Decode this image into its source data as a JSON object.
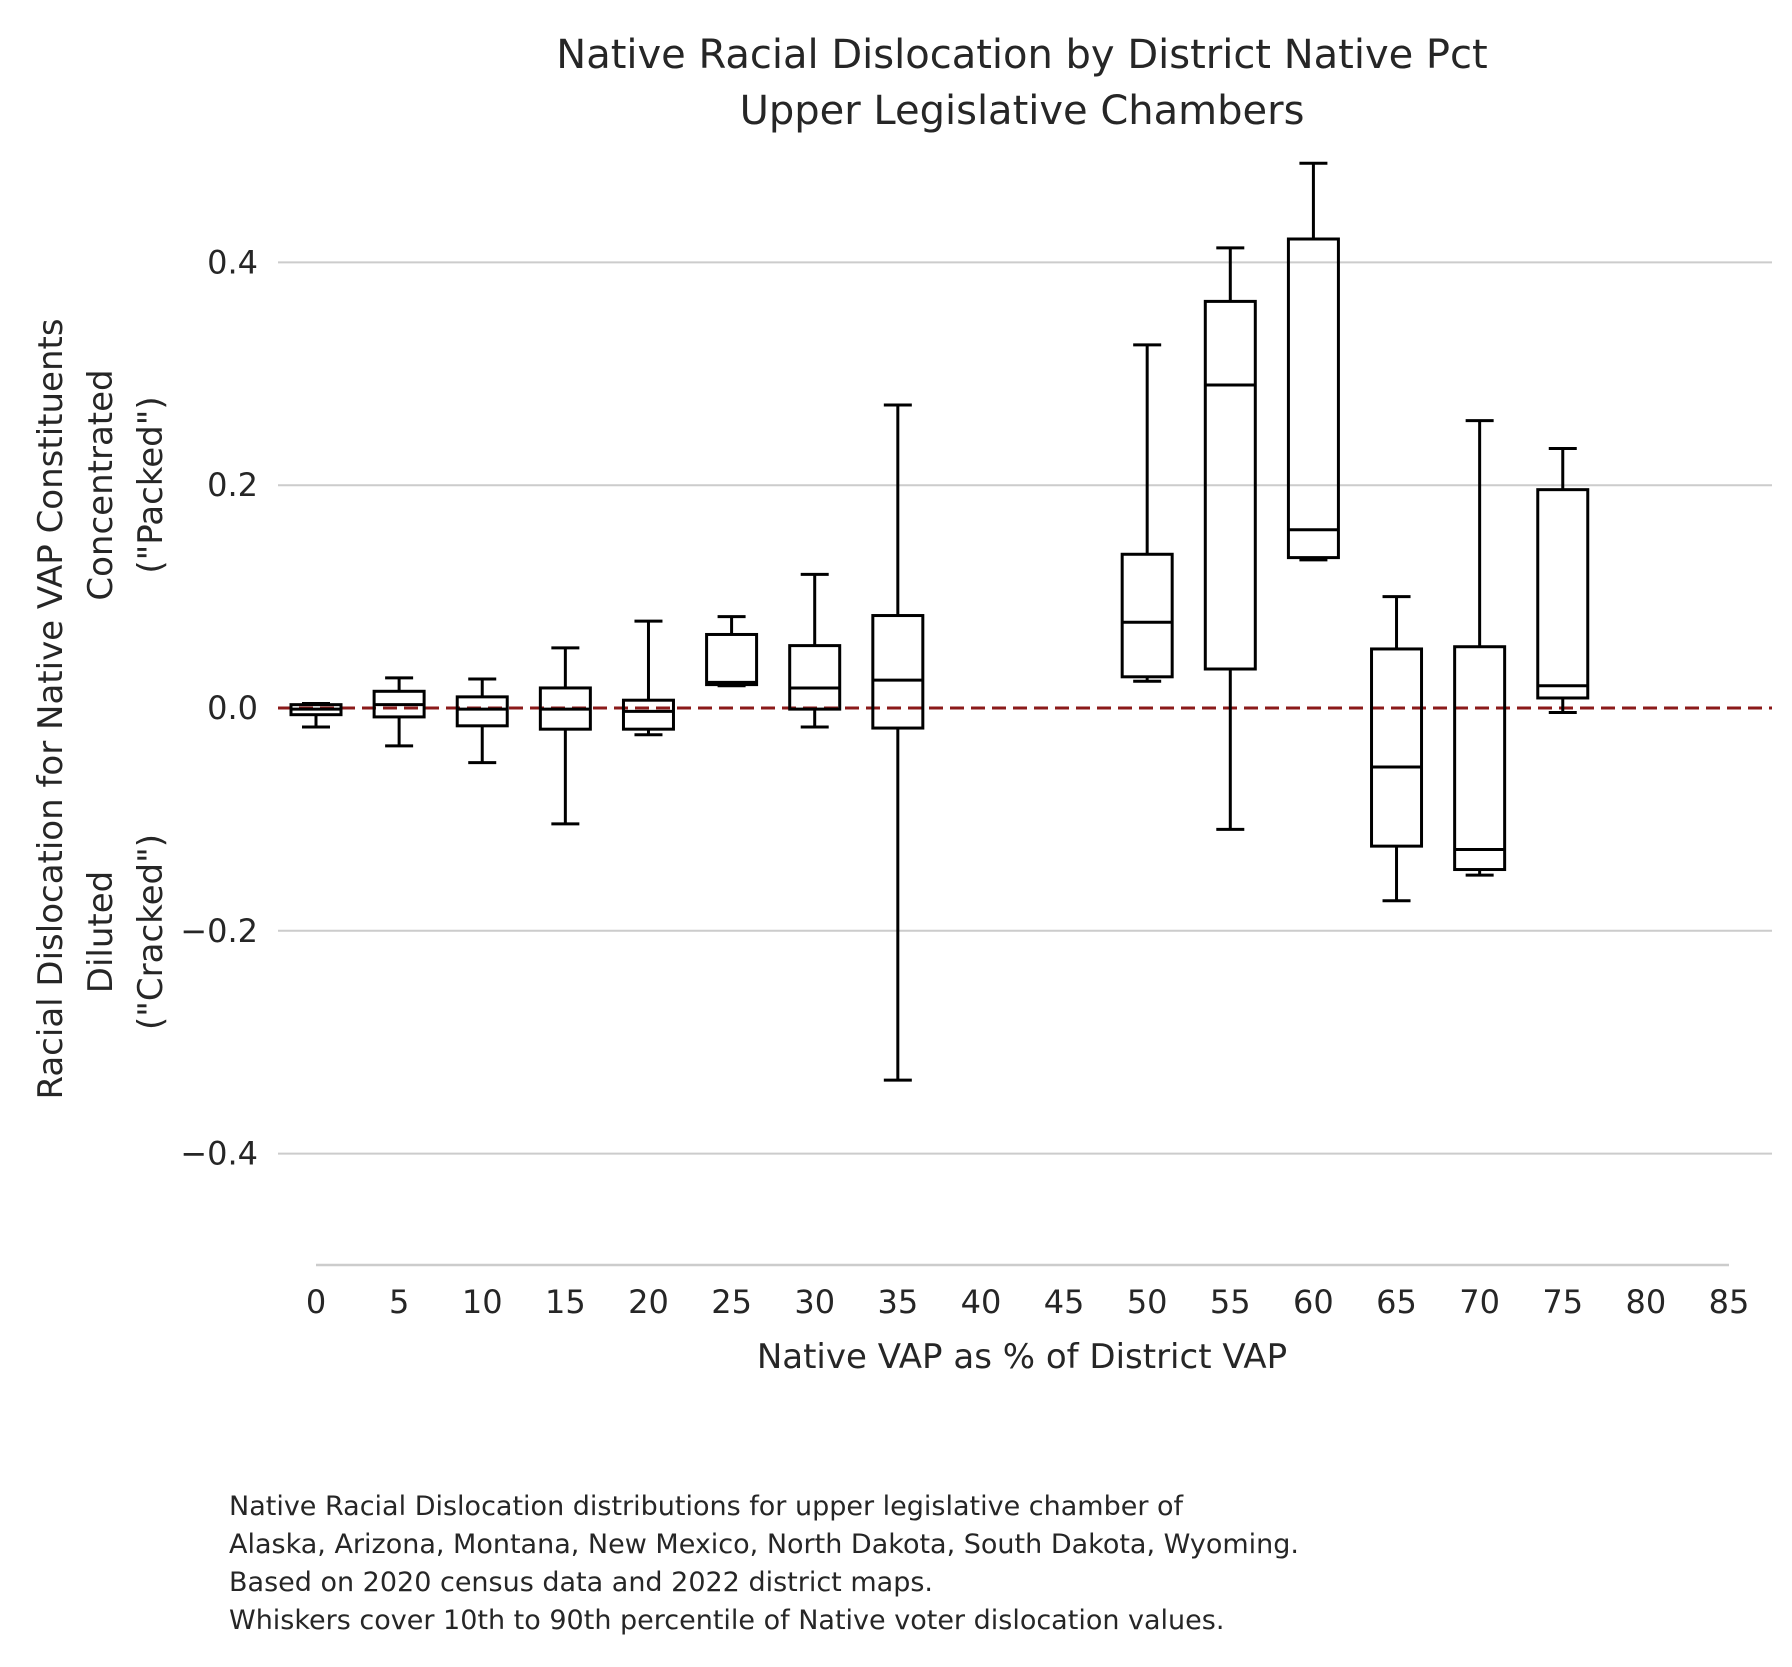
{
  "chart_data": {
    "type": "box",
    "title": [
      "Native Racial Dislocation by District Native Pct",
      "Upper Legislative Chambers"
    ],
    "xlabel": "Native VAP as % of District VAP",
    "ylabel": [
      "Racial Dislocation for Native VAP Constituents",
      "Concentrated",
      "(\"Packed\")",
      "Diluted",
      "(\"Cracked\")"
    ],
    "xlim": [
      0,
      85
    ],
    "ylim": [
      -0.5,
      0.5
    ],
    "x_ticks": [
      0,
      5,
      10,
      15,
      20,
      25,
      30,
      35,
      40,
      45,
      50,
      55,
      60,
      65,
      70,
      75,
      80,
      85
    ],
    "y_ticks": [
      -0.4,
      -0.2,
      0.0,
      0.2,
      0.4
    ],
    "y_tick_labels": [
      "−0.4",
      "−0.2",
      "0.0",
      "0.2",
      "0.4"
    ],
    "grid": "horizontal",
    "reference_line": {
      "y": 0.0,
      "color": "#8b1a1a",
      "style": "dashed"
    },
    "box_color": "#000000",
    "whisker_range": "10th to 90th percentile",
    "boxes": [
      {
        "x": 0,
        "whisker_low": -0.017,
        "q1": -0.006,
        "median": -0.001,
        "q3": 0.003,
        "whisker_high": 0.004
      },
      {
        "x": 5,
        "whisker_low": -0.034,
        "q1": -0.008,
        "median": 0.003,
        "q3": 0.015,
        "whisker_high": 0.027
      },
      {
        "x": 10,
        "whisker_low": -0.049,
        "q1": -0.016,
        "median": -0.001,
        "q3": 0.01,
        "whisker_high": 0.026
      },
      {
        "x": 15,
        "whisker_low": -0.104,
        "q1": -0.019,
        "median": -0.001,
        "q3": 0.018,
        "whisker_high": 0.054
      },
      {
        "x": 20,
        "whisker_low": -0.024,
        "q1": -0.019,
        "median": -0.003,
        "q3": 0.007,
        "whisker_high": 0.078
      },
      {
        "x": 25,
        "whisker_low": 0.02,
        "q1": 0.021,
        "median": 0.023,
        "q3": 0.066,
        "whisker_high": 0.082
      },
      {
        "x": 30,
        "whisker_low": -0.017,
        "q1": -0.001,
        "median": 0.018,
        "q3": 0.056,
        "whisker_high": 0.12
      },
      {
        "x": 35,
        "whisker_low": -0.334,
        "q1": -0.018,
        "median": 0.025,
        "q3": 0.083,
        "whisker_high": 0.272
      },
      {
        "x": 50,
        "whisker_low": 0.024,
        "q1": 0.028,
        "median": 0.077,
        "q3": 0.138,
        "whisker_high": 0.326
      },
      {
        "x": 55,
        "whisker_low": -0.109,
        "q1": 0.035,
        "median": 0.29,
        "q3": 0.365,
        "whisker_high": 0.413
      },
      {
        "x": 60,
        "whisker_low": 0.133,
        "q1": 0.135,
        "median": 0.16,
        "q3": 0.421,
        "whisker_high": 0.489
      },
      {
        "x": 65,
        "whisker_low": -0.173,
        "q1": -0.124,
        "median": -0.053,
        "q3": 0.053,
        "whisker_high": 0.1
      },
      {
        "x": 70,
        "whisker_low": -0.15,
        "q1": -0.145,
        "median": -0.127,
        "q3": 0.055,
        "whisker_high": 0.258
      },
      {
        "x": 75,
        "whisker_low": -0.004,
        "q1": 0.009,
        "median": 0.02,
        "q3": 0.196,
        "whisker_high": 0.233
      }
    ],
    "caption": [
      "Native Racial Dislocation distributions for upper legislative chamber of",
      "Alaska, Arizona, Montana, New Mexico, North Dakota, South Dakota, Wyoming.",
      "Based on 2020 census data and 2022 district maps.",
      "Whiskers cover 10th to 90th percentile of Native voter dislocation values."
    ]
  }
}
